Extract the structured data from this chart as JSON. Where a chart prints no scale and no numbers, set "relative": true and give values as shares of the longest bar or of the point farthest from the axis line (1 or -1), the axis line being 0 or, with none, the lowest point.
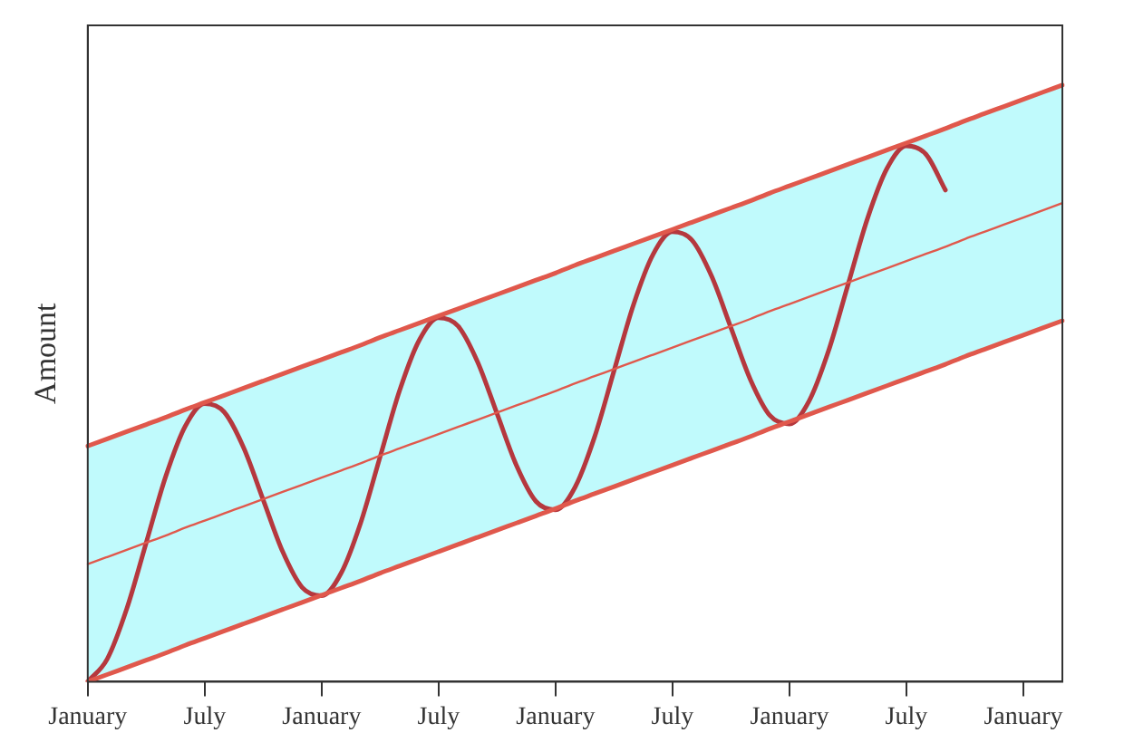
{
  "chart_data": {
    "type": "line",
    "relative": true,
    "ylabel": "Amount",
    "categories": [
      "January",
      null,
      null,
      null,
      null,
      null,
      "July",
      null,
      null,
      null,
      null,
      null,
      "January",
      null,
      null,
      null,
      null,
      null,
      "July",
      null,
      null,
      null,
      null,
      null,
      "January",
      null,
      null,
      null,
      null,
      null,
      "July",
      null,
      null,
      null,
      null,
      null,
      "January",
      null,
      null,
      null,
      null,
      null,
      "July",
      null,
      null,
      null,
      null,
      null,
      "January",
      null,
      null
    ],
    "series": [
      {
        "type": "line",
        "color": "#e0584c",
        "values": [
          0.395,
          0.407,
          0.419,
          0.431,
          0.443,
          0.456,
          0.468,
          0.48,
          0.492,
          0.504,
          0.516,
          0.528,
          0.54,
          0.552,
          0.564,
          0.577,
          0.589,
          0.601,
          0.613,
          0.625,
          0.637,
          0.649,
          0.661,
          0.673,
          0.685,
          0.698,
          0.71,
          0.722,
          0.734,
          0.746,
          0.758,
          0.77,
          0.782,
          0.794,
          0.806,
          0.819,
          0.831,
          0.843,
          0.855,
          0.867,
          0.879,
          0.891,
          0.903,
          0.915,
          0.927,
          0.94,
          0.952,
          0.964,
          0.976,
          0.988,
          1.0
        ]
      },
      {
        "type": "line",
        "color": "#e0584c",
        "values": [
          0,
          0.012,
          0.024,
          0.036,
          0.048,
          0.061,
          0.073,
          0.085,
          0.097,
          0.109,
          0.121,
          0.133,
          0.145,
          0.157,
          0.169,
          0.182,
          0.194,
          0.206,
          0.218,
          0.23,
          0.242,
          0.254,
          0.266,
          0.278,
          0.29,
          0.303,
          0.315,
          0.327,
          0.339,
          0.351,
          0.363,
          0.375,
          0.387,
          0.399,
          0.411,
          0.424,
          0.436,
          0.448,
          0.46,
          0.472,
          0.484,
          0.496,
          0.508,
          0.52,
          0.532,
          0.545,
          0.557,
          0.569,
          0.581,
          0.593,
          0.605
        ]
      },
      {
        "type": "line",
        "color": "#e0584c",
        "values": [
          0.197,
          0.209,
          0.221,
          0.233,
          0.245,
          0.258,
          0.27,
          0.282,
          0.294,
          0.306,
          0.318,
          0.33,
          0.342,
          0.354,
          0.366,
          0.379,
          0.391,
          0.403,
          0.415,
          0.427,
          0.439,
          0.451,
          0.463,
          0.475,
          0.487,
          0.5,
          0.512,
          0.524,
          0.536,
          0.548,
          0.56,
          0.572,
          0.584,
          0.596,
          0.608,
          0.621,
          0.633,
          0.645,
          0.657,
          0.669,
          0.681,
          0.693,
          0.705,
          0.717,
          0.729,
          0.742,
          0.754,
          0.766,
          0.778,
          0.79,
          0.802
        ],
        "lower": [
          0,
          0.012,
          0.024,
          0.036,
          0.048,
          0.061,
          0.073,
          0.085,
          0.097,
          0.109,
          0.121,
          0.133,
          0.145,
          0.157,
          0.169,
          0.182,
          0.194,
          0.206,
          0.218,
          0.23,
          0.242,
          0.254,
          0.266,
          0.278,
          0.29,
          0.303,
          0.315,
          0.327,
          0.339,
          0.351,
          0.363,
          0.375,
          0.387,
          0.399,
          0.411,
          0.424,
          0.436,
          0.448,
          0.46,
          0.472,
          0.484,
          0.496,
          0.508,
          0.52,
          0.532,
          0.545,
          0.557,
          0.569,
          0.581,
          0.593,
          0.605
        ],
        "upper": [
          0.395,
          0.407,
          0.419,
          0.431,
          0.443,
          0.456,
          0.468,
          0.48,
          0.492,
          0.504,
          0.516,
          0.528,
          0.54,
          0.552,
          0.564,
          0.577,
          0.589,
          0.601,
          0.613,
          0.625,
          0.637,
          0.649,
          0.661,
          0.673,
          0.685,
          0.698,
          0.71,
          0.722,
          0.734,
          0.746,
          0.758,
          0.77,
          0.782,
          0.794,
          0.806,
          0.819,
          0.831,
          0.843,
          0.855,
          0.867,
          0.879,
          0.891,
          0.903,
          0.915,
          0.927,
          0.94,
          0.952,
          0.964,
          0.976,
          0.988,
          1.0
        ]
      },
      {
        "type": "line",
        "color": "#b5383e",
        "values": [
          0,
          0.038,
          0.122,
          0.233,
          0.344,
          0.428,
          0.466,
          0.452,
          0.392,
          0.305,
          0.218,
          0.158,
          0.144,
          0.182,
          0.266,
          0.377,
          0.488,
          0.572,
          0.61,
          0.596,
          0.536,
          0.449,
          0.362,
          0.302,
          0.288,
          0.326,
          0.41,
          0.521,
          0.632,
          0.716,
          0.754,
          0.74,
          0.68,
          0.593,
          0.506,
          0.446,
          0.432,
          0.47,
          0.554,
          0.665,
          0.776,
          0.86,
          0.898,
          0.884,
          0.824,
          null,
          null,
          null,
          null,
          null,
          null
        ]
      }
    ],
    "grid": false,
    "legend": false,
    "marker": "none",
    "line_style": "solid"
  }
}
